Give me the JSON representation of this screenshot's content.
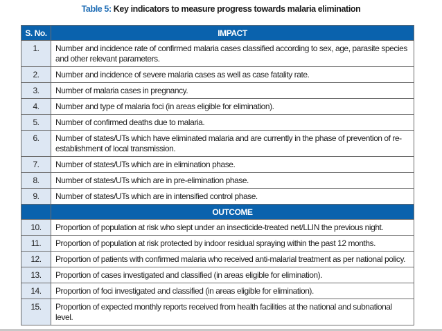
{
  "title": {
    "label": "Table 5:",
    "text": " Key indicators to measure progress towards malaria elimination"
  },
  "header": {
    "sno": "S. No.",
    "impact": "IMPACT",
    "outcome": "OUTCOME"
  },
  "colors": {
    "header_bg": "#0a62ad",
    "sno_bg": "#dde7f3",
    "title_label": "#1f6db5"
  },
  "impact": [
    {
      "n": "1.",
      "text": "Number and incidence rate of confirmed malaria cases classified according to sex, age, parasite species and other relevant parameters."
    },
    {
      "n": "2.",
      "text": "Number and incidence of severe malaria cases as well as case fatality rate."
    },
    {
      "n": "3.",
      "text": "Number of malaria cases in pregnancy."
    },
    {
      "n": "4.",
      "text": "Number and type of malaria foci (in areas eligible for elimination)."
    },
    {
      "n": "5.",
      "text": "Number of confirmed deaths due to malaria."
    },
    {
      "n": "6.",
      "text": "Number of states/UTs which have eliminated malaria and are currently in the phase of prevention of re-establishment of local transmission."
    },
    {
      "n": "7.",
      "text": "Number of states/UTs which are in elimination phase."
    },
    {
      "n": "8.",
      "text": "Number of states/UTs which are in pre-elimination phase."
    },
    {
      "n": "9.",
      "text": "Number of states/UTs which are in intensified control phase."
    }
  ],
  "outcome": [
    {
      "n": "10.",
      "text": "Proportion of population at risk who slept under an insecticide-treated net/LLIN the previous night."
    },
    {
      "n": "11.",
      "text": "Proportion of population at risk protected by indoor residual spraying within the past 12 months."
    },
    {
      "n": "12.",
      "text": "Proportion of patients with confirmed malaria who received anti-malarial treatment as per national policy."
    },
    {
      "n": "13.",
      "text": "Proportion of cases investigated and classified (in areas eligible for elimination)."
    },
    {
      "n": "14.",
      "text": "Proportion of foci investigated and classified (in areas eligible for elimination)."
    },
    {
      "n": "15.",
      "text": "Proportion of expected monthly reports received from health facilities at the national and subnational level."
    }
  ]
}
